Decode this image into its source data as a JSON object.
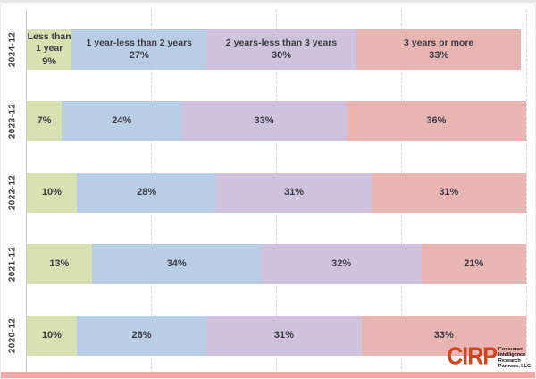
{
  "chart_data": {
    "type": "bar",
    "orientation": "horizontal",
    "stacked": true,
    "unit": "%",
    "categories": [
      "2024-12",
      "2023-12",
      "2022-12",
      "2021-12",
      "2020-12"
    ],
    "series": [
      {
        "name": "Less than 1 year",
        "color": "#d7e2b2",
        "values": [
          9,
          7,
          10,
          13,
          10
        ]
      },
      {
        "name": "1 year-less than 2 years",
        "color": "#b9cde4",
        "values": [
          27,
          24,
          28,
          34,
          26
        ]
      },
      {
        "name": "2 years-less than 3 years",
        "color": "#cec2dc",
        "values": [
          30,
          33,
          31,
          32,
          31
        ]
      },
      {
        "name": "3 years or more",
        "color": "#e9b5b3",
        "values": [
          33,
          36,
          31,
          21,
          33
        ]
      }
    ],
    "xlim": [
      0,
      100
    ],
    "gridlines_percent": [
      25,
      50,
      75,
      100
    ],
    "grid_style": "dashed",
    "legend_position": "none",
    "series_names_shown_in_first_row_only": true,
    "label_text_color": "#3b3b46",
    "axis_line_color": "#c9c9c9"
  },
  "branding": {
    "logo_text": "CIRP",
    "logo_color": "#d2451e",
    "tagline_lines": [
      "Consumer",
      "Intelligence",
      "Research",
      "Partners, LLC"
    ],
    "bottom_strip_color": "#eeaaa5"
  }
}
